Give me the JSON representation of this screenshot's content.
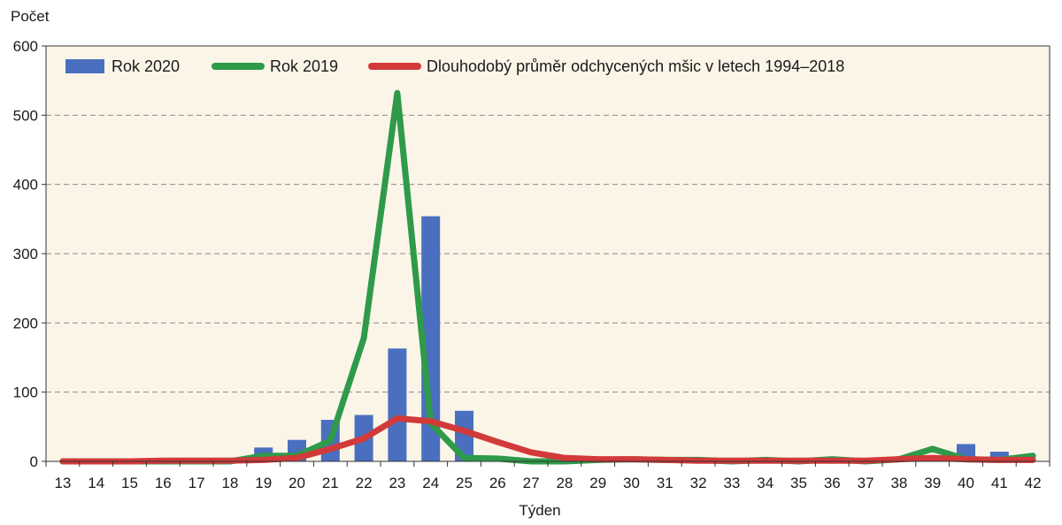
{
  "chart_data": {
    "type": "bar+line",
    "ylabel": "Počet",
    "xlabel": "Týden",
    "ylim": [
      0,
      600
    ],
    "yticks": [
      0,
      100,
      200,
      300,
      400,
      500,
      600
    ],
    "categories": [
      "13",
      "14",
      "15",
      "16",
      "17",
      "18",
      "19",
      "20",
      "21",
      "22",
      "23",
      "24",
      "25",
      "26",
      "27",
      "28",
      "29",
      "30",
      "31",
      "32",
      "33",
      "34",
      "35",
      "36",
      "37",
      "38",
      "39",
      "40",
      "41",
      "42"
    ],
    "series": [
      {
        "name": "Rok 2020",
        "kind": "bar",
        "color": "#4a6fbf",
        "values": [
          0,
          0,
          0,
          0,
          0,
          0,
          20,
          31,
          60,
          67,
          163,
          354,
          73,
          0,
          0,
          0,
          0,
          0,
          0,
          0,
          0,
          0,
          0,
          0,
          0,
          0,
          0,
          25,
          14,
          0
        ]
      },
      {
        "name": "Rok 2019",
        "kind": "line",
        "color": "#2f9a4a",
        "values": [
          0,
          0,
          0,
          0,
          0,
          0,
          8,
          8,
          30,
          178,
          532,
          55,
          5,
          4,
          0,
          0,
          2,
          3,
          2,
          2,
          0,
          2,
          0,
          3,
          0,
          3,
          18,
          3,
          2,
          8
        ]
      },
      {
        "name": "Dlouhodobý průměr odchycených mšic v letech 1994–2018",
        "kind": "line",
        "color": "#d23a3a",
        "values": [
          0,
          0,
          0,
          1,
          1,
          1,
          2,
          5,
          18,
          33,
          62,
          58,
          44,
          28,
          13,
          5,
          3,
          3,
          2,
          1,
          1,
          1,
          1,
          1,
          1,
          3,
          5,
          3,
          2,
          2
        ]
      }
    ],
    "grid": true,
    "legend": "top-left",
    "background_color": "#fbf5e8"
  }
}
